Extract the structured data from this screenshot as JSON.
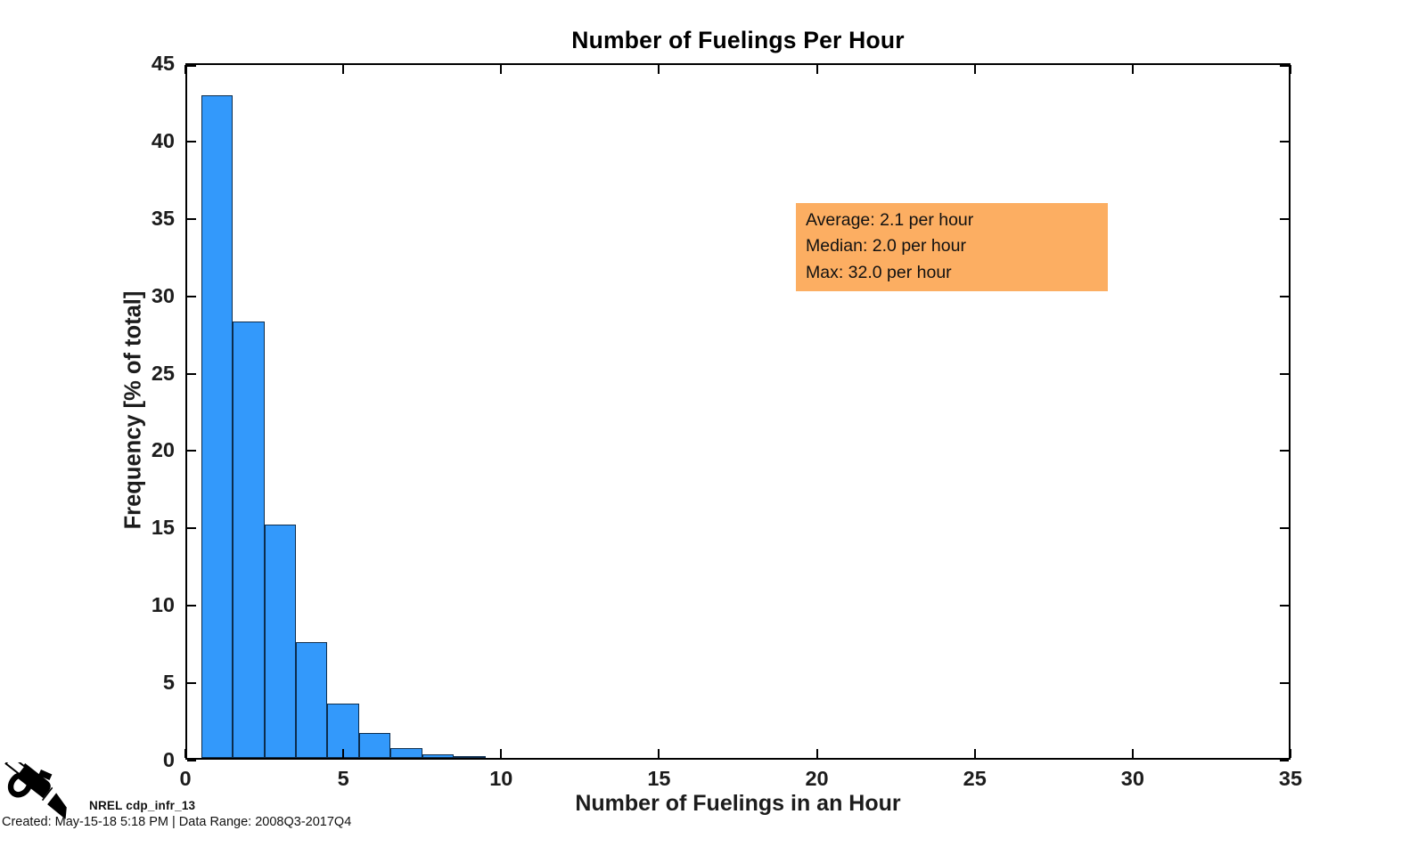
{
  "title": "Number of Fuelings Per Hour",
  "axes": {
    "x": {
      "label": "Number of Fuelings in an Hour",
      "min": 0,
      "max": 35,
      "ticks": [
        0,
        5,
        10,
        15,
        20,
        25,
        30,
        35
      ]
    },
    "y": {
      "label": "Frequency [% of total]",
      "min": 0,
      "max": 45,
      "ticks": [
        0,
        5,
        10,
        15,
        20,
        25,
        30,
        35,
        40,
        45
      ]
    }
  },
  "chart_data": {
    "type": "bar",
    "title": "Number of Fuelings Per Hour",
    "xlabel": "Number of Fuelings in an Hour",
    "ylabel": "Frequency [% of total]",
    "xlim": [
      0,
      35
    ],
    "ylim": [
      0,
      45
    ],
    "grid": false,
    "legend": "none",
    "bin_width": 1,
    "bin_centers": [
      1,
      2,
      3,
      4,
      5,
      6,
      7,
      8,
      9
    ],
    "values": [
      42.8,
      28.2,
      15.1,
      7.5,
      3.5,
      1.6,
      0.65,
      0.22,
      0.08
    ],
    "annotations": [
      "Average: 2.1 per hour",
      "Median: 2.0 per hour",
      "Max: 32.0 per hour"
    ]
  },
  "annotation_box": {
    "lines": [
      "Average: 2.1 per hour",
      "Median: 2.0 per hour",
      "Max: 32.0 per hour"
    ],
    "bg_color": "#FCAE62"
  },
  "colors": {
    "bar_fill": "#3399FB",
    "bar_edge": "#0C2D4E",
    "annotation_bg": "#FCAE62",
    "axis": "#000000",
    "tick_text": "#1C1C1C"
  },
  "footer": {
    "logo_icon": "fuel-nozzle-icon",
    "credit": "NREL cdp_infr_13",
    "created": "Created: May-15-18  5:18 PM | Data Range: 2008Q3-2017Q4"
  }
}
